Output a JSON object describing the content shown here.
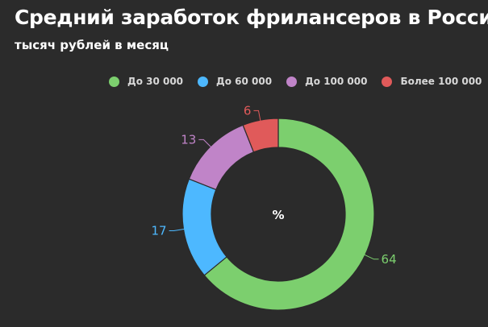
{
  "title": "Средний заработок фрилансеров в России",
  "subtitle": "тысяч рублей в месяц",
  "center_label": "%",
  "chart_data": {
    "type": "pie",
    "variant": "donut",
    "categories": [
      "До 30 000",
      "До 60 000",
      "До 100 000",
      "Более 100 000"
    ],
    "values": [
      64,
      17,
      13,
      6
    ],
    "colors": [
      "#7ccf6e",
      "#4db8ff",
      "#c084c8",
      "#e05a5a"
    ],
    "legend_position": "top",
    "data_labels": [
      "64",
      "17",
      "13",
      "6"
    ]
  }
}
